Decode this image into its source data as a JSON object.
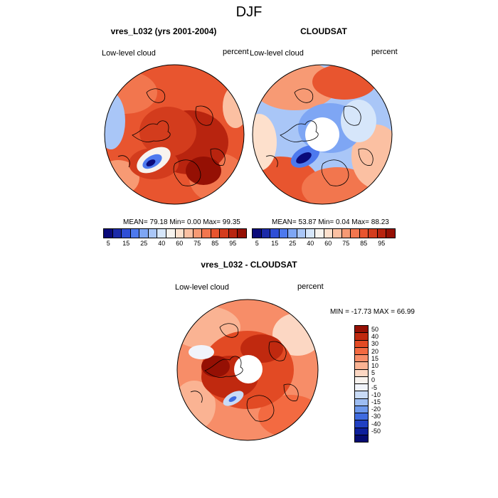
{
  "title": "DJF",
  "panels": {
    "left": {
      "title": "vres_L032 (yrs 2001-2004)",
      "left_label": "Low-level cloud",
      "right_label": "percent",
      "stats": "MEAN=  79.18  Min=   0.00  Max=  99.35"
    },
    "right": {
      "title": "CLOUDSAT",
      "left_label": "Low-level cloud",
      "right_label": "percent",
      "stats": "MEAN=  53.87  Min=   0.04  Max=  88.23"
    },
    "diff": {
      "title": "vres_L032 - CLOUDSAT",
      "left_label": "Low-level cloud",
      "right_label": "percent",
      "stats": "MIN = -17.73 MAX =  66.99"
    }
  },
  "colorbar_main": {
    "labels": [
      "5",
      "15",
      "25",
      "40",
      "60",
      "75",
      "85",
      "95"
    ],
    "colors": [
      "#0a0a7a",
      "#1b2aa8",
      "#2f4fd6",
      "#4d79ee",
      "#7ea6f4",
      "#a9c6f7",
      "#d6e6fa",
      "#f7f3ee",
      "#fde0cc",
      "#fbc0a2",
      "#f79a74",
      "#f2764e",
      "#e8552f",
      "#d33c1d",
      "#b8240f",
      "#951004"
    ]
  },
  "colorbar_diff": {
    "labels": [
      "50",
      "40",
      "30",
      "20",
      "15",
      "10",
      "5",
      "0",
      "-5",
      "-10",
      "-15",
      "-20",
      "-30",
      "-40",
      "-50"
    ],
    "colors": [
      "#951004",
      "#c0290f",
      "#e24a24",
      "#f36a41",
      "#f78d68",
      "#fab393",
      "#fcd7c3",
      "#f8f3ef",
      "#f1f4fb",
      "#c9dbf6",
      "#9dbdf2",
      "#6d98ec",
      "#3f6be0",
      "#2040c2",
      "#0d1f9c",
      "#050b72"
    ]
  }
}
